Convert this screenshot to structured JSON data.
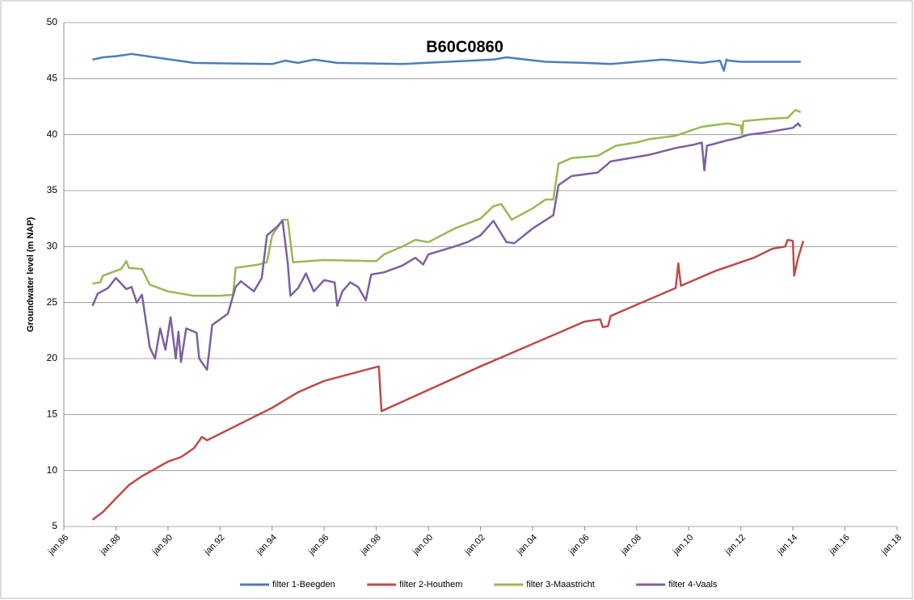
{
  "chart_data": {
    "type": "line",
    "title": "B60C0860",
    "y_label": "Groundwater level (m NAP)",
    "xlim": [
      1986,
      2018
    ],
    "xticks": [
      {
        "value": 1986,
        "label": "jan.86"
      },
      {
        "value": 1988,
        "label": "jan.88"
      },
      {
        "value": 1990,
        "label": "jan.90"
      },
      {
        "value": 1992,
        "label": "jan.92"
      },
      {
        "value": 1994,
        "label": "jan.94"
      },
      {
        "value": 1996,
        "label": "jan.96"
      },
      {
        "value": 1998,
        "label": "jan.98"
      },
      {
        "value": 2000,
        "label": "jan.00"
      },
      {
        "value": 2002,
        "label": "jan.02"
      },
      {
        "value": 2004,
        "label": "jan.04"
      },
      {
        "value": 2006,
        "label": "jan.06"
      },
      {
        "value": 2008,
        "label": "jan.08"
      },
      {
        "value": 2010,
        "label": "jan.10"
      },
      {
        "value": 2012,
        "label": "jan.12"
      },
      {
        "value": 2014,
        "label": "jan.14"
      },
      {
        "value": 2016,
        "label": "jan.16"
      },
      {
        "value": 2018,
        "label": "jan.18"
      }
    ],
    "ylim": [
      5,
      50
    ],
    "yticks": [
      5,
      10,
      15,
      20,
      25,
      30,
      35,
      40,
      45,
      50
    ],
    "grid": true,
    "legend": "bottom",
    "series": [
      {
        "name": "filter 1-Beegden",
        "color": "#4a7ebb",
        "x": [
          1987.1,
          1987.5,
          1988.0,
          1988.6,
          1989.5,
          1991.0,
          1994.0,
          1994.5,
          1995.0,
          1995.6,
          1996.5,
          1999.0,
          2002.5,
          2003.0,
          2004.5,
          2006.0,
          2007.0,
          2009.0,
          2010.5,
          2011.2,
          2011.35,
          2011.45,
          2011.55,
          2012.0,
          2014.3
        ],
        "values": [
          46.7,
          46.9,
          47.0,
          47.2,
          46.9,
          46.4,
          46.3,
          46.6,
          46.4,
          46.7,
          46.4,
          46.3,
          46.7,
          46.9,
          46.5,
          46.4,
          46.3,
          46.7,
          46.4,
          46.6,
          45.7,
          46.7,
          46.6,
          46.5,
          46.5
        ]
      },
      {
        "name": "filter 2-Houthem",
        "color": "#be4b48",
        "x": [
          1987.1,
          1987.5,
          1988.0,
          1988.5,
          1989.0,
          1990.0,
          1990.5,
          1991.0,
          1991.3,
          1991.5,
          1994.0,
          1995.0,
          1996.0,
          1998.1,
          1998.2,
          2000.0,
          2002.0,
          2004.0,
          2005.0,
          2006.0,
          2006.6,
          2006.7,
          2006.9,
          2007.0,
          2008.0,
          2009.5,
          2009.6,
          2009.7,
          2011.0,
          2012.0,
          2012.5,
          2013.2,
          2013.7,
          2013.8,
          2014.0,
          2014.05,
          2014.2,
          2014.4
        ],
        "values": [
          5.6,
          6.3,
          7.5,
          8.7,
          9.5,
          10.8,
          11.2,
          12.0,
          13.0,
          12.7,
          15.6,
          17.0,
          18.0,
          19.3,
          15.3,
          17.2,
          19.3,
          21.3,
          22.3,
          23.3,
          23.5,
          22.8,
          22.9,
          23.8,
          24.8,
          26.3,
          28.5,
          26.5,
          27.8,
          28.6,
          29.0,
          29.8,
          30.0,
          30.6,
          30.5,
          27.4,
          29.0,
          30.5
        ]
      },
      {
        "name": "filter 3-Maastricht",
        "color": "#98b954",
        "x": [
          1987.1,
          1987.4,
          1987.5,
          1988.2,
          1988.4,
          1988.5,
          1989.0,
          1989.3,
          1990.0,
          1991.0,
          1992.0,
          1992.5,
          1992.6,
          1993.5,
          1993.8,
          1994.0,
          1994.4,
          1994.6,
          1994.8,
          1996.0,
          1998.0,
          1998.3,
          1999.0,
          1999.5,
          2000.0,
          2001.0,
          2002.0,
          2002.5,
          2002.8,
          2003.2,
          2004.0,
          2004.5,
          2004.8,
          2005.0,
          2005.5,
          2006.5,
          2007.2,
          2008.0,
          2008.5,
          2009.5,
          2010.5,
          2011.5,
          2012.0,
          2012.05,
          2012.1,
          2013.0,
          2013.8,
          2014.1,
          2014.3
        ],
        "values": [
          26.7,
          26.8,
          27.4,
          28.0,
          28.7,
          28.1,
          28.0,
          26.6,
          26.0,
          25.6,
          25.6,
          25.7,
          28.1,
          28.4,
          28.6,
          31.0,
          32.4,
          32.4,
          28.6,
          28.8,
          28.7,
          29.3,
          30.0,
          30.6,
          30.4,
          31.6,
          32.5,
          33.6,
          33.8,
          32.4,
          33.4,
          34.2,
          34.2,
          37.4,
          37.9,
          38.1,
          39.0,
          39.3,
          39.6,
          39.9,
          40.7,
          41.0,
          40.8,
          40.0,
          41.2,
          41.4,
          41.5,
          42.2,
          42.0
        ]
      },
      {
        "name": "filter 4-Vaals",
        "color": "#7d60a0",
        "x": [
          1987.1,
          1987.3,
          1987.7,
          1988.0,
          1988.4,
          1988.6,
          1988.8,
          1989.0,
          1989.3,
          1989.5,
          1989.7,
          1989.9,
          1990.1,
          1990.3,
          1990.4,
          1990.5,
          1990.7,
          1991.1,
          1991.2,
          1991.5,
          1991.7,
          1992.0,
          1992.3,
          1992.6,
          1992.8,
          1993.3,
          1993.6,
          1993.8,
          1994.2,
          1994.4,
          1994.6,
          1994.7,
          1995.0,
          1995.3,
          1995.6,
          1996.0,
          1996.4,
          1996.5,
          1996.7,
          1997.0,
          1997.3,
          1997.6,
          1997.8,
          1998.3,
          1999.0,
          1999.5,
          1999.8,
          2000.0,
          2001.0,
          2001.5,
          2002.0,
          2002.5,
          2003.0,
          2003.3,
          2004.0,
          2004.8,
          2005.0,
          2005.5,
          2006.5,
          2007.0,
          2008.0,
          2008.5,
          2009.5,
          2010.2,
          2010.5,
          2010.6,
          2010.7,
          2011.5,
          2011.9,
          2012.3,
          2013.0,
          2014.0,
          2014.2,
          2014.3
        ],
        "values": [
          24.7,
          25.8,
          26.3,
          27.2,
          26.2,
          26.4,
          25.0,
          25.7,
          21.0,
          20.0,
          22.7,
          20.8,
          23.7,
          20.0,
          22.4,
          19.7,
          22.7,
          22.3,
          20.0,
          19.0,
          23.0,
          23.5,
          24.0,
          26.4,
          26.9,
          26.0,
          27.2,
          31.0,
          31.8,
          32.3,
          28.5,
          25.6,
          26.3,
          27.6,
          26.0,
          27.0,
          26.8,
          24.7,
          26.0,
          26.8,
          26.4,
          25.2,
          27.5,
          27.7,
          28.3,
          29.0,
          28.4,
          29.3,
          30.0,
          30.4,
          31.0,
          32.3,
          30.4,
          30.3,
          31.6,
          32.8,
          35.5,
          36.3,
          36.6,
          37.6,
          38.0,
          38.2,
          38.8,
          39.1,
          39.3,
          36.8,
          39.0,
          39.5,
          39.7,
          40.0,
          40.2,
          40.6,
          41.0,
          40.7
        ]
      }
    ]
  }
}
